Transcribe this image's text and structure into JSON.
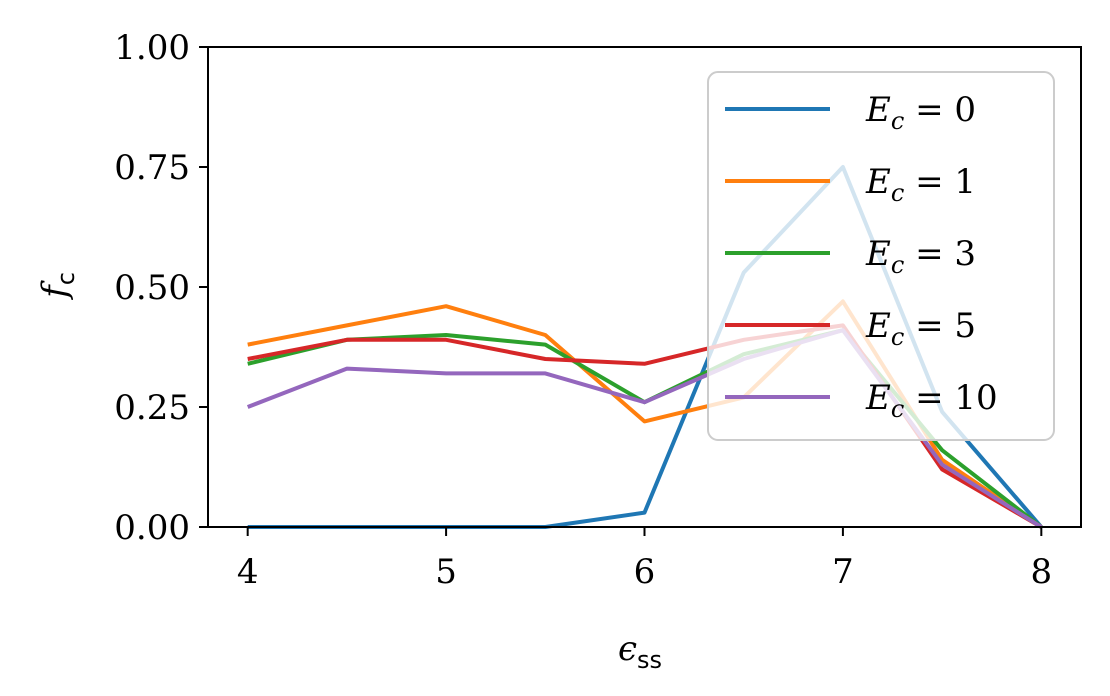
{
  "chart_data": {
    "type": "line",
    "x": [
      4,
      4.5,
      5,
      5.5,
      6,
      6.5,
      7,
      7.5,
      8
    ],
    "xlim": [
      3.8,
      8.2
    ],
    "ylim": [
      0,
      1
    ],
    "xticks": [
      4,
      5,
      6,
      7,
      8
    ],
    "xtick_labels": [
      "4",
      "5",
      "6",
      "7",
      "8"
    ],
    "yticks": [
      0,
      0.25,
      0.5,
      0.75,
      1
    ],
    "ytick_labels": [
      "0.00",
      "0.25",
      "0.50",
      "0.75",
      "1.00"
    ],
    "xlabel": {
      "symbol": "ϵ",
      "sub": "ss"
    },
    "ylabel": {
      "symbol": "f",
      "sub": "c"
    },
    "grid": false,
    "legend_position": "upper-right",
    "series": [
      {
        "name": "E_c = 0",
        "label_main": "E",
        "label_sub": "c",
        "label_rest": " = 0",
        "color": "#1f77b4",
        "values": [
          0,
          0,
          0,
          0,
          0.03,
          0.53,
          0.75,
          0.24,
          0
        ]
      },
      {
        "name": "E_c = 1",
        "label_main": "E",
        "label_sub": "c",
        "label_rest": " = 1",
        "color": "#ff7f0e",
        "values": [
          0.38,
          0.42,
          0.46,
          0.4,
          0.22,
          0.27,
          0.47,
          0.14,
          0
        ]
      },
      {
        "name": "E_c = 3",
        "label_main": "E",
        "label_sub": "c",
        "label_rest": " = 3",
        "color": "#2ca02c",
        "values": [
          0.34,
          0.39,
          0.4,
          0.38,
          0.26,
          0.36,
          0.41,
          0.16,
          0
        ]
      },
      {
        "name": "E_c = 5",
        "label_main": "E",
        "label_sub": "c",
        "label_rest": " = 5",
        "color": "#d62728",
        "values": [
          0.35,
          0.39,
          0.39,
          0.35,
          0.34,
          0.39,
          0.42,
          0.12,
          0
        ]
      },
      {
        "name": "E_c = 10",
        "label_main": "E",
        "label_sub": "c",
        "label_rest": " = 10",
        "color": "#9467bd",
        "values": [
          0.25,
          0.33,
          0.32,
          0.32,
          0.26,
          0.35,
          0.41,
          0.13,
          0
        ]
      }
    ]
  }
}
